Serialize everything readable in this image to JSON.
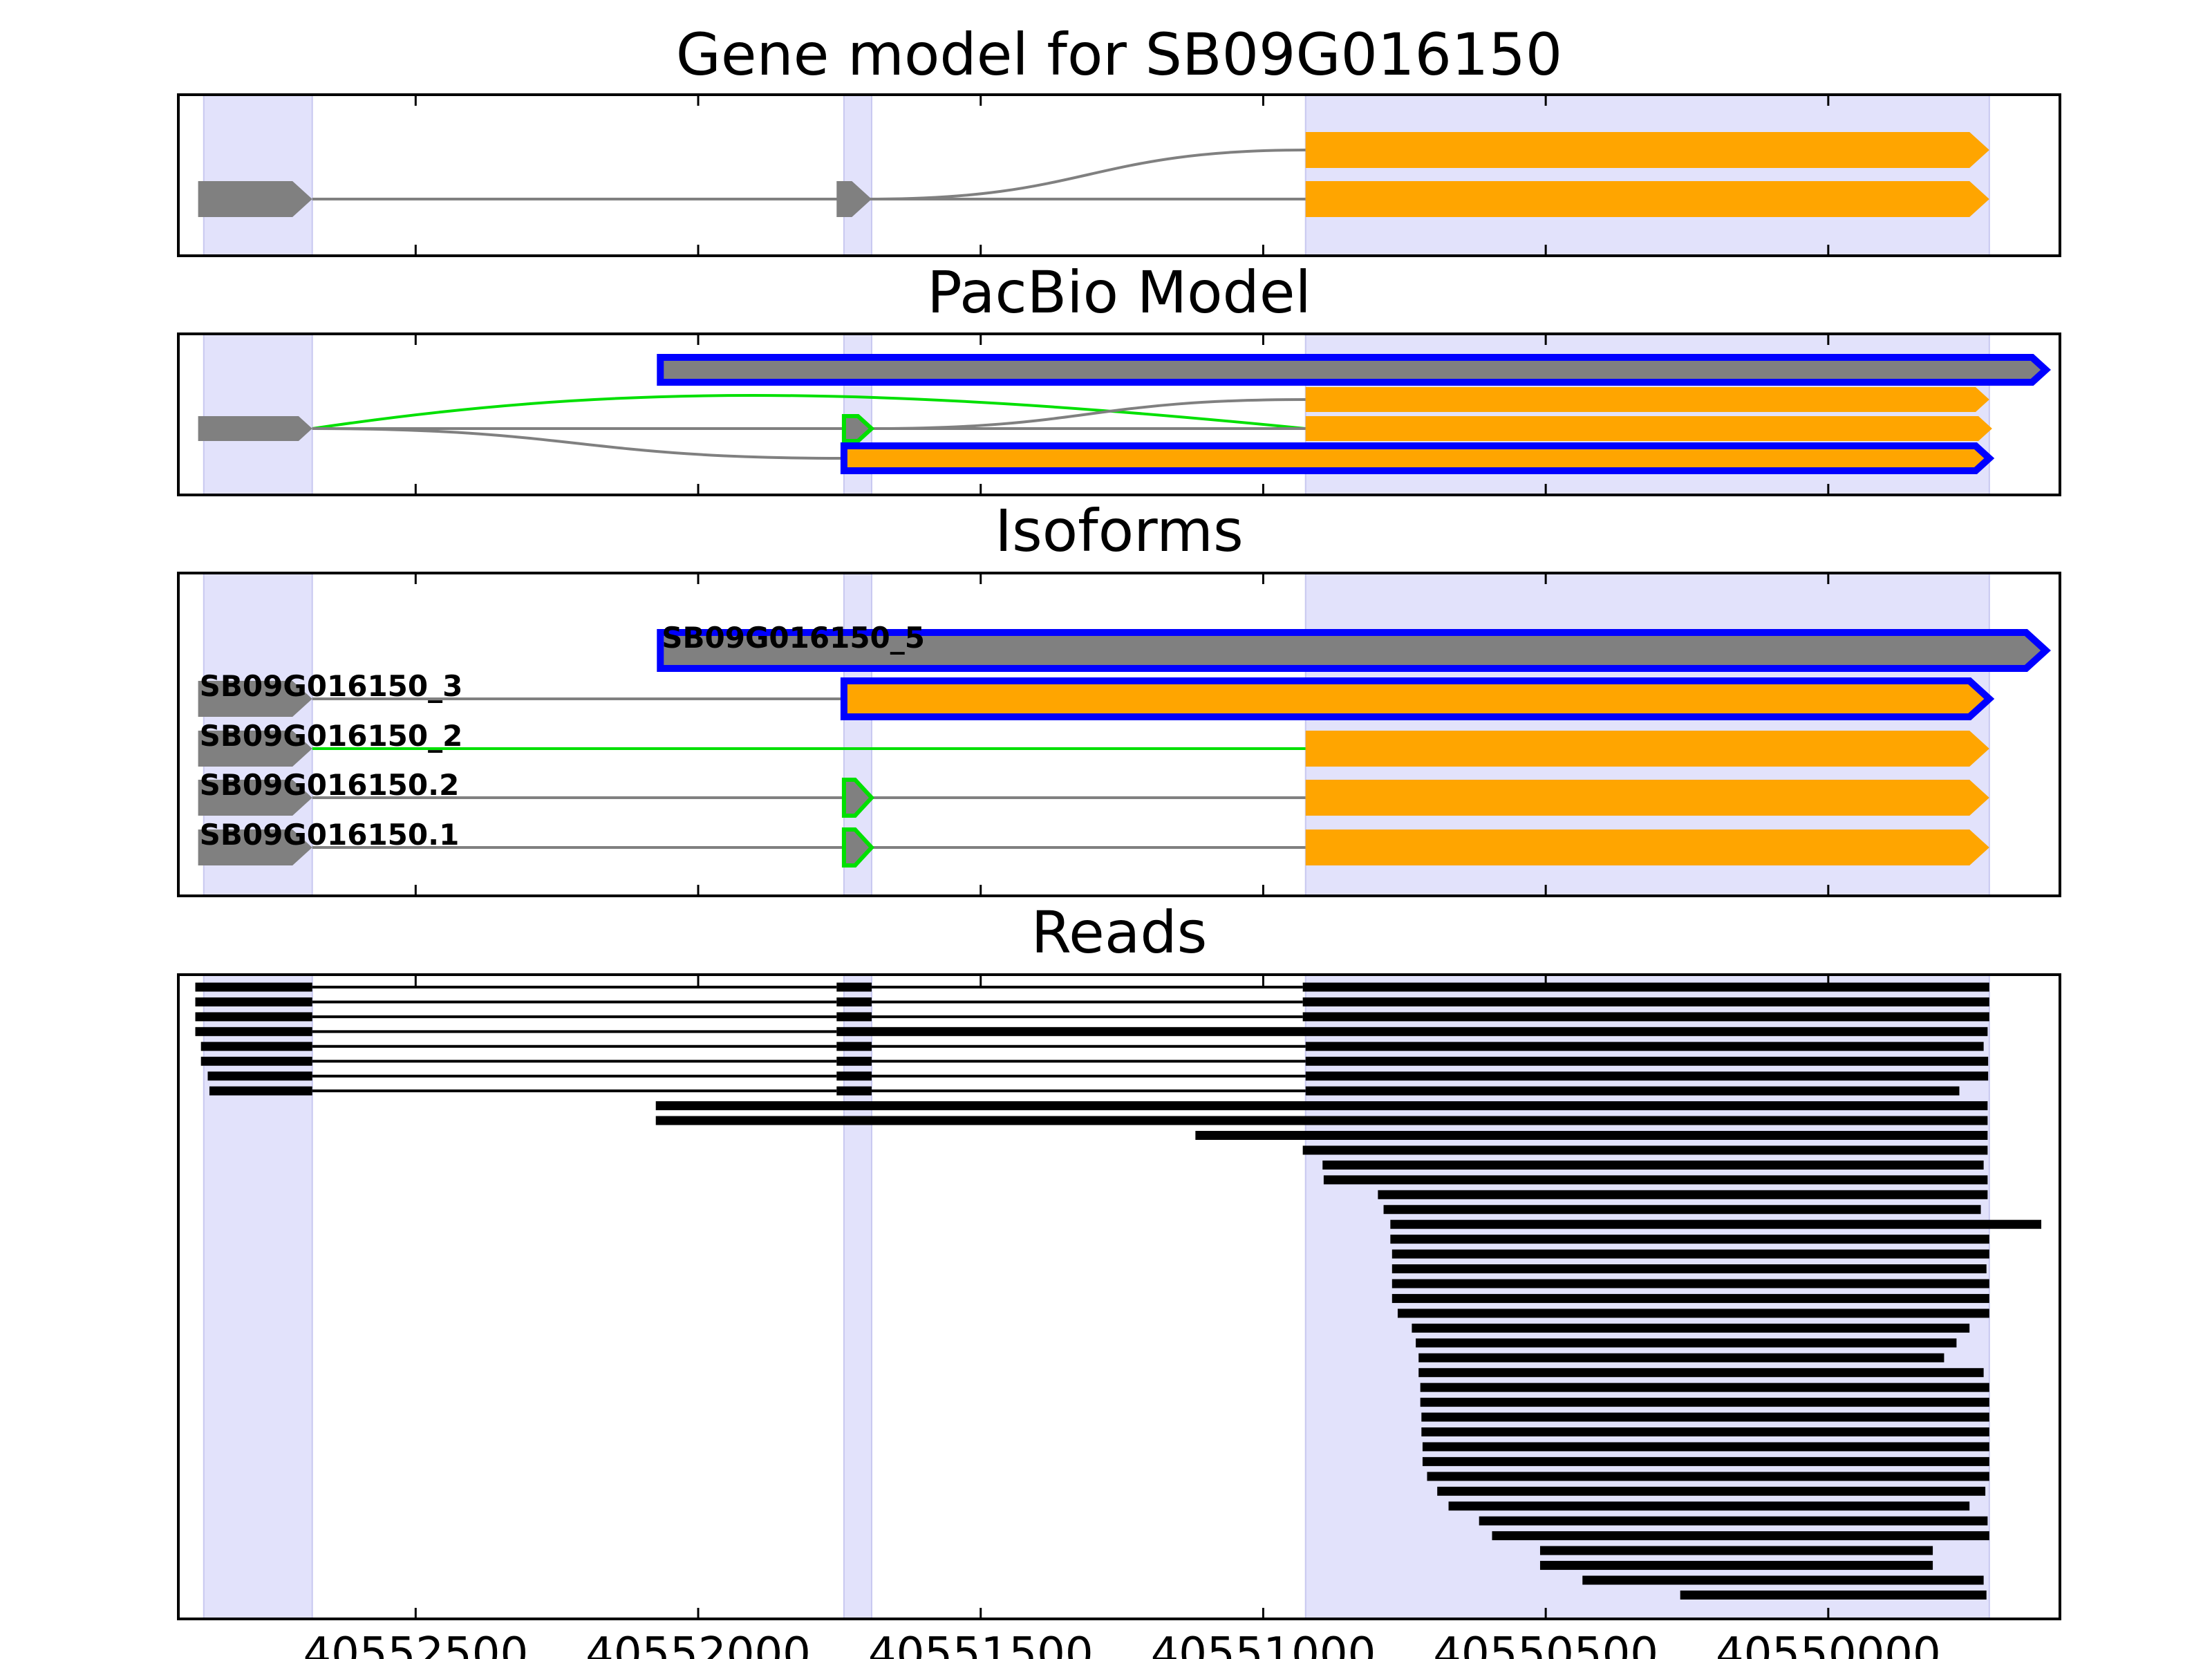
{
  "colors": {
    "exon_shade": "#e2e2fb",
    "utr": "#808080",
    "cds": "#ffa500",
    "intron": "#808080",
    "novel_outline": "#0000ff",
    "alt_green": "#00e000",
    "read": "#000000"
  },
  "axis": {
    "x_min": 40552920,
    "x_max": 40549590,
    "ticks": [
      40552500,
      40552000,
      40551500,
      40551000,
      40550500,
      40550000
    ],
    "tick_labels": [
      "40552500",
      "40552000",
      "40551500",
      "40551000",
      "40550500",
      "40550000"
    ]
  },
  "shaded_exons": [
    [
      40552875,
      40552683
    ],
    [
      40551742,
      40551693
    ],
    [
      40550925,
      40549715
    ]
  ],
  "panels": [
    {
      "title": "Gene model for SB09G016150",
      "rows": 2,
      "transcripts": [
        {
          "row": 0,
          "label": "",
          "intron_color": "intron",
          "intron_style": "curve",
          "intron_from": 40551693,
          "intron_to": 40550925,
          "blocks": [
            {
              "start": 40550925,
              "end": 40549715,
              "fill": "cds",
              "stroke": "",
              "arrow": true
            }
          ]
        },
        {
          "row": 1,
          "label": "",
          "intron_color": "intron",
          "intron_style": "line",
          "intron_from": 40552683,
          "intron_to": 40550925,
          "blocks": [
            {
              "start": 40552885,
              "end": 40552683,
              "fill": "utr",
              "stroke": "",
              "arrow": true
            },
            {
              "start": 40551755,
              "end": 40551693,
              "fill": "utr",
              "stroke": "",
              "arrow": true
            },
            {
              "start": 40550925,
              "end": 40549715,
              "fill": "cds",
              "stroke": "",
              "arrow": true
            }
          ]
        }
      ]
    },
    {
      "title": "PacBio Model",
      "rows": 4,
      "transcripts": [
        {
          "row": 0,
          "label": "",
          "intron_color": "",
          "intron_style": "none",
          "blocks": [
            {
              "start": 40552067,
              "end": 40549615,
              "fill": "utr",
              "stroke": "novel_outline",
              "arrow": true
            }
          ]
        },
        {
          "row": 1,
          "label": "",
          "intron_color": "intron",
          "intron_style": "curve_from_below",
          "intron_from": 40551693,
          "intron_to": 40550925,
          "blocks": [
            {
              "start": 40550925,
              "end": 40549715,
              "fill": "cds",
              "stroke": "",
              "arrow": true
            }
          ]
        },
        {
          "row": 2,
          "label": "",
          "intron_color": "intron",
          "intron_style": "line",
          "intron_from": 40552683,
          "intron_to": 40550925,
          "blocks": [
            {
              "start": 40552885,
              "end": 40552683,
              "fill": "utr",
              "stroke": "",
              "arrow": true
            },
            {
              "start": 40551742,
              "end": 40551693,
              "fill": "utr",
              "stroke": "alt_green",
              "arrow": true
            },
            {
              "start": 40550925,
              "end": 40549710,
              "fill": "cds",
              "stroke": "",
              "arrow": true
            }
          ]
        },
        {
          "row": 3,
          "label": "",
          "intron_color": "intron",
          "intron_style": "curve_down",
          "intron_from": 40552683,
          "intron_to": 40551742,
          "blocks": [
            {
              "start": 40551742,
              "end": 40549715,
              "fill": "cds",
              "stroke": "novel_outline",
              "arrow": true
            }
          ]
        }
      ],
      "green_curve": {
        "from": 40552683,
        "to": 40550925,
        "row_from": 2,
        "row_to": 2
      }
    },
    {
      "title": "Isoforms",
      "rows": 5,
      "transcripts": [
        {
          "row": 0,
          "label": "SB09G016150_5",
          "label_x": 40552067,
          "intron_color": "",
          "intron_style": "none",
          "blocks": [
            {
              "start": 40552067,
              "end": 40549615,
              "fill": "utr",
              "stroke": "novel_outline",
              "arrow": true
            }
          ]
        },
        {
          "row": 1,
          "label": "SB09G016150_3",
          "label_x": 40552885,
          "intron_color": "intron",
          "intron_style": "line",
          "intron_from": 40552683,
          "intron_to": 40551742,
          "blocks": [
            {
              "start": 40552885,
              "end": 40552683,
              "fill": "utr",
              "stroke": "",
              "arrow": true
            },
            {
              "start": 40551742,
              "end": 40549715,
              "fill": "cds",
              "stroke": "novel_outline",
              "arrow": true
            }
          ]
        },
        {
          "row": 2,
          "label": "SB09G016150_2",
          "label_x": 40552885,
          "intron_color": "alt_green",
          "intron_style": "line",
          "intron_from": 40552683,
          "intron_to": 40550925,
          "blocks": [
            {
              "start": 40552885,
              "end": 40552683,
              "fill": "utr",
              "stroke": "",
              "arrow": true
            },
            {
              "start": 40550925,
              "end": 40549715,
              "fill": "cds",
              "stroke": "",
              "arrow": true
            }
          ]
        },
        {
          "row": 3,
          "label": "SB09G016150.2",
          "label_x": 40552885,
          "intron_color": "intron",
          "intron_style": "line",
          "intron_from": 40552683,
          "intron_to": 40550925,
          "blocks": [
            {
              "start": 40552885,
              "end": 40552683,
              "fill": "utr",
              "stroke": "",
              "arrow": true
            },
            {
              "start": 40551742,
              "end": 40551693,
              "fill": "utr",
              "stroke": "alt_green",
              "arrow": true
            },
            {
              "start": 40550925,
              "end": 40549715,
              "fill": "cds",
              "stroke": "",
              "arrow": true
            }
          ]
        },
        {
          "row": 4,
          "label": "SB09G016150.1",
          "label_x": 40552885,
          "intron_color": "intron",
          "intron_style": "line",
          "intron_from": 40552683,
          "intron_to": 40550925,
          "blocks": [
            {
              "start": 40552885,
              "end": 40552683,
              "fill": "utr",
              "stroke": "",
              "arrow": true
            },
            {
              "start": 40551742,
              "end": 40551693,
              "fill": "utr",
              "stroke": "alt_green",
              "arrow": true
            },
            {
              "start": 40550925,
              "end": 40549715,
              "fill": "cds",
              "stroke": "",
              "arrow": true
            }
          ]
        }
      ]
    },
    {
      "title": "Reads",
      "rows": 42
    }
  ],
  "reads": [
    {
      "segments": [
        [
          40552890,
          40552683
        ],
        [
          40551755,
          40551693
        ],
        [
          40550930,
          40549715
        ]
      ]
    },
    {
      "segments": [
        [
          40552890,
          40552683
        ],
        [
          40551755,
          40551693
        ],
        [
          40550930,
          40549715
        ]
      ]
    },
    {
      "segments": [
        [
          40552890,
          40552683
        ],
        [
          40551755,
          40551693
        ],
        [
          40550930,
          40549715
        ]
      ]
    },
    {
      "segments": [
        [
          40552890,
          40552683
        ],
        [
          40551755,
          40549718
        ]
      ]
    },
    {
      "segments": [
        [
          40552880,
          40552683
        ],
        [
          40551755,
          40551693
        ],
        [
          40550925,
          40549725
        ]
      ]
    },
    {
      "segments": [
        [
          40552880,
          40552683
        ],
        [
          40551755,
          40551693
        ],
        [
          40550925,
          40549717
        ]
      ]
    },
    {
      "segments": [
        [
          40552868,
          40552683
        ],
        [
          40551755,
          40551693
        ],
        [
          40550925,
          40549717
        ]
      ]
    },
    {
      "segments": [
        [
          40552865,
          40552683
        ],
        [
          40551755,
          40551693
        ],
        [
          40550925,
          40549768
        ]
      ]
    },
    {
      "segments": [
        [
          40552075,
          40549718
        ]
      ]
    },
    {
      "segments": [
        [
          40552075,
          40549718
        ]
      ]
    },
    {
      "segments": [
        [
          40551120,
          40549718
        ]
      ]
    },
    {
      "segments": [
        [
          40550930,
          40549718
        ]
      ]
    },
    {
      "segments": [
        [
          40550895,
          40549725
        ]
      ]
    },
    {
      "segments": [
        [
          40550893,
          40549718
        ]
      ]
    },
    {
      "segments": [
        [
          40550797,
          40549718
        ]
      ]
    },
    {
      "segments": [
        [
          40550787,
          40549730
        ]
      ]
    },
    {
      "segments": [
        [
          40550775,
          40549623
        ]
      ]
    },
    {
      "segments": [
        [
          40550775,
          40549715
        ]
      ]
    },
    {
      "segments": [
        [
          40550772,
          40549715
        ]
      ]
    },
    {
      "segments": [
        [
          40550772,
          40549720
        ]
      ]
    },
    {
      "segments": [
        [
          40550772,
          40549715
        ]
      ]
    },
    {
      "segments": [
        [
          40550772,
          40549715
        ]
      ]
    },
    {
      "segments": [
        [
          40550762,
          40549715
        ]
      ]
    },
    {
      "segments": [
        [
          40550737,
          40549750
        ]
      ]
    },
    {
      "segments": [
        [
          40550730,
          40549773
        ]
      ]
    },
    {
      "segments": [
        [
          40550725,
          40549795
        ]
      ]
    },
    {
      "segments": [
        [
          40550725,
          40549725
        ]
      ]
    },
    {
      "segments": [
        [
          40550722,
          40549715
        ]
      ]
    },
    {
      "segments": [
        [
          40550722,
          40549715
        ]
      ]
    },
    {
      "segments": [
        [
          40550720,
          40549715
        ]
      ]
    },
    {
      "segments": [
        [
          40550720,
          40549715
        ]
      ]
    },
    {
      "segments": [
        [
          40550718,
          40549715
        ]
      ]
    },
    {
      "segments": [
        [
          40550718,
          40549715
        ]
      ]
    },
    {
      "segments": [
        [
          40550710,
          40549715
        ]
      ]
    },
    {
      "segments": [
        [
          40550692,
          40549722
        ]
      ]
    },
    {
      "segments": [
        [
          40550672,
          40549750
        ]
      ]
    },
    {
      "segments": [
        [
          40550618,
          40549718
        ]
      ]
    },
    {
      "segments": [
        [
          40550595,
          40549715
        ]
      ]
    },
    {
      "segments": [
        [
          40550510,
          40549815
        ]
      ]
    },
    {
      "segments": [
        [
          40550510,
          40549815
        ]
      ]
    },
    {
      "segments": [
        [
          40550435,
          40549725
        ]
      ]
    },
    {
      "segments": [
        [
          40550262,
          40549720
        ]
      ]
    }
  ]
}
